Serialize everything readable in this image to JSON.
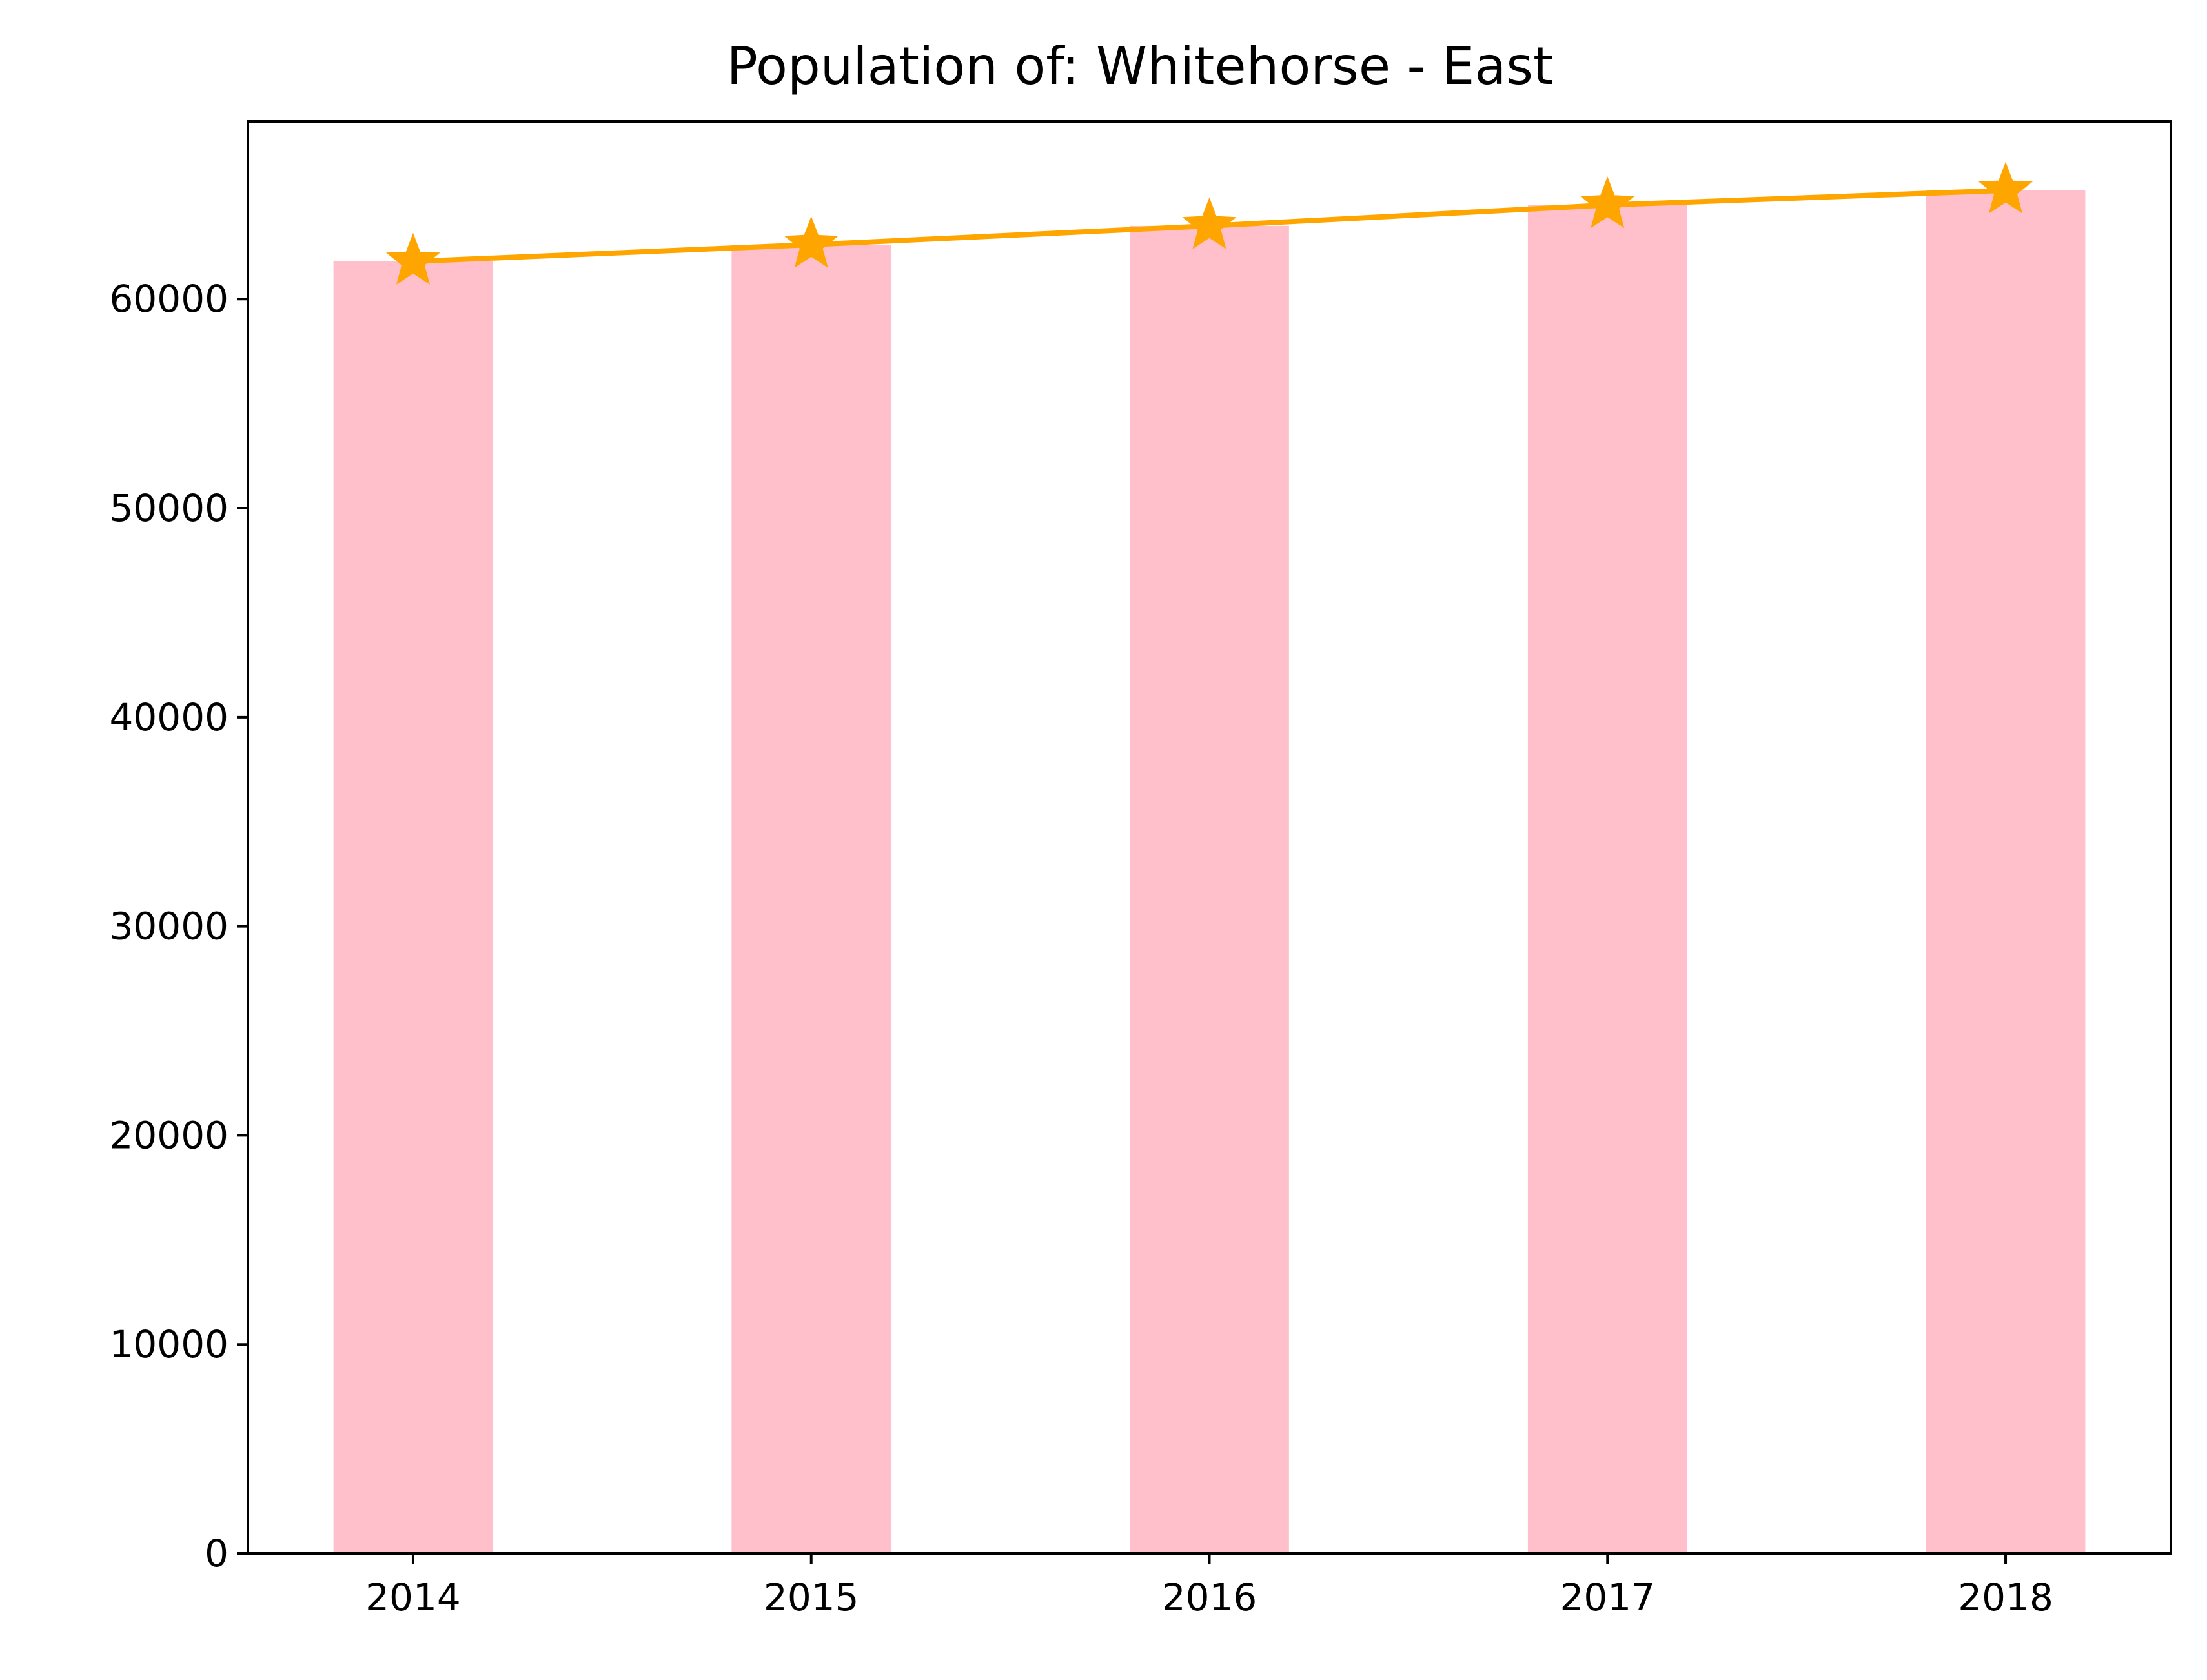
{
  "chart_data": {
    "type": "bar",
    "title": "Population of: Whitehorse - East",
    "xlabel": "",
    "ylabel": "",
    "categories": [
      "2014",
      "2015",
      "2016",
      "2017",
      "2018"
    ],
    "series": [
      {
        "type": "bar",
        "values": [
          61800,
          62600,
          63500,
          64500,
          65200
        ],
        "color": "#ffc0cb"
      },
      {
        "type": "line",
        "marker": "star",
        "values": [
          61800,
          62600,
          63500,
          64500,
          65200
        ],
        "color": "#ffa500"
      }
    ],
    "ylim": [
      0,
      68500
    ],
    "yticks": [
      0,
      10000,
      20000,
      30000,
      40000,
      50000,
      60000
    ],
    "ytick_labels": [
      "0",
      "10000",
      "20000",
      "30000",
      "40000",
      "50000",
      "60000"
    ],
    "grid": false,
    "legend": false
  }
}
